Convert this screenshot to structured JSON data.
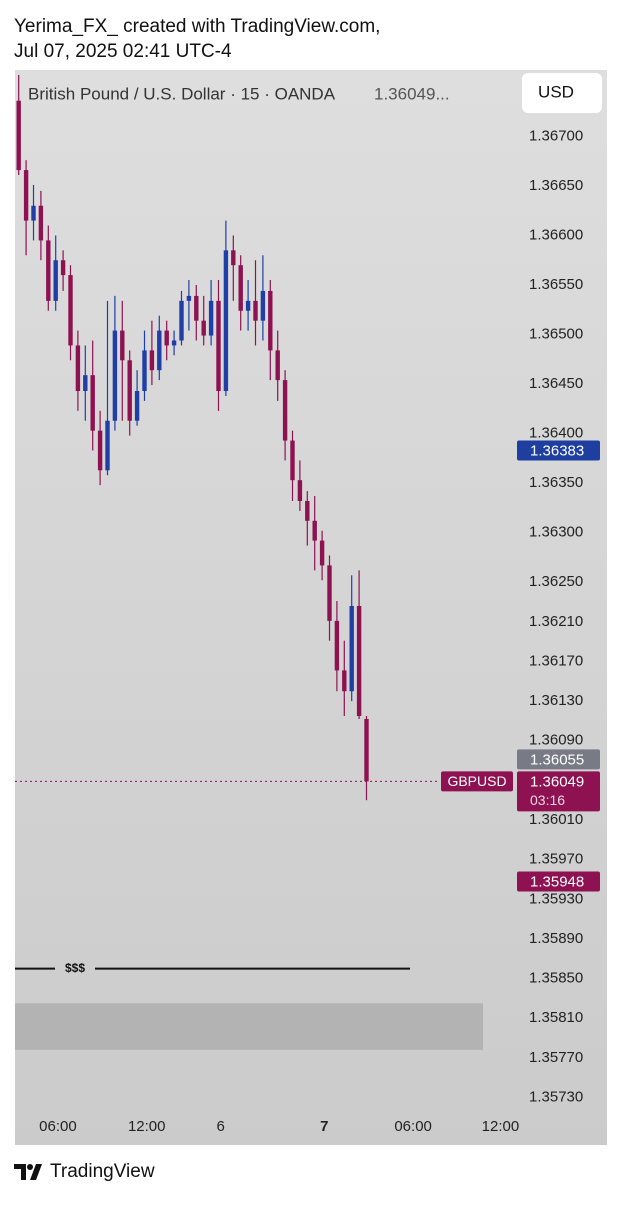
{
  "header": {
    "line1": "Yerima_FX_ created with TradingView.com,",
    "line2": "Jul 07, 2025 02:41 UTC-4"
  },
  "chart_data": {
    "type": "candlestick",
    "title": "British Pound / U.S. Dollar · 15 · OANDA",
    "last_price_text": "1.36049...",
    "currency": "USD",
    "up_color": "#1f3fa6",
    "down_color": "#8e1252",
    "open": [
      1.36736,
      1.36666,
      1.36615,
      1.3663,
      1.36595,
      1.36534,
      1.36575,
      1.3656,
      1.36489,
      1.36443,
      1.36459,
      1.36403,
      1.36363,
      1.36413,
      1.36504,
      1.36474,
      1.36413,
      1.36443,
      1.36484,
      1.36464,
      1.36504,
      1.36489,
      1.36494,
      1.36534,
      1.36539,
      1.36514,
      1.36499,
      1.36534,
      1.36443,
      1.36585,
      1.3657,
      1.36524,
      1.36534,
      1.36514,
      1.36544,
      1.36484,
      1.36454,
      1.36393,
      1.36353,
      1.36332,
      1.36312,
      1.36292,
      1.36267,
      1.36211,
      1.36161,
      1.3614,
      1.36226,
      1.36112
    ],
    "high": [
      1.36762,
      1.36676,
      1.36651,
      1.36645,
      1.3661,
      1.366,
      1.36585,
      1.3657,
      1.36504,
      1.36489,
      1.36494,
      1.36423,
      1.36534,
      1.36539,
      1.36534,
      1.36484,
      1.36464,
      1.36504,
      1.36514,
      1.36519,
      1.36514,
      1.36504,
      1.36544,
      1.36555,
      1.3655,
      1.36539,
      1.36555,
      1.36555,
      1.36615,
      1.366,
      1.3658,
      1.36555,
      1.36575,
      1.3658,
      1.36555,
      1.36504,
      1.36464,
      1.36403,
      1.36373,
      1.36342,
      1.36337,
      1.36302,
      1.36277,
      1.36231,
      1.36191,
      1.36257,
      1.36262,
      1.36115
    ],
    "low": [
      1.36661,
      1.3658,
      1.36595,
      1.36575,
      1.36524,
      1.36524,
      1.36544,
      1.36474,
      1.36423,
      1.36413,
      1.36383,
      1.36348,
      1.36358,
      1.36403,
      1.36413,
      1.36398,
      1.36408,
      1.36433,
      1.36449,
      1.36454,
      1.36474,
      1.36479,
      1.36489,
      1.36504,
      1.36494,
      1.36489,
      1.36489,
      1.36423,
      1.36438,
      1.36534,
      1.36504,
      1.36504,
      1.36489,
      1.36494,
      1.36454,
      1.36433,
      1.36373,
      1.36332,
      1.36322,
      1.36287,
      1.36262,
      1.36252,
      1.36191,
      1.3614,
      1.36115,
      1.3613,
      1.36112,
      1.3603
    ],
    "close": [
      1.36666,
      1.36615,
      1.3663,
      1.36595,
      1.36534,
      1.36575,
      1.3656,
      1.36489,
      1.36443,
      1.36459,
      1.36403,
      1.36363,
      1.36413,
      1.36504,
      1.36474,
      1.36413,
      1.36443,
      1.36484,
      1.36464,
      1.36504,
      1.36489,
      1.36494,
      1.36534,
      1.36539,
      1.36514,
      1.36499,
      1.36534,
      1.36443,
      1.36585,
      1.3657,
      1.36524,
      1.36534,
      1.36514,
      1.36544,
      1.36484,
      1.36454,
      1.36393,
      1.36353,
      1.36332,
      1.36312,
      1.36292,
      1.36267,
      1.36211,
      1.36161,
      1.3614,
      1.36226,
      1.36115,
      1.36049
    ],
    "xlim": [
      0,
      80
    ],
    "xticks": [
      {
        "value": 5.8,
        "label": "06:00"
      },
      {
        "value": 17.8,
        "label": "12:00"
      },
      {
        "value": 27.8,
        "label": "6"
      },
      {
        "value": 41.8,
        "label": "7"
      },
      {
        "value": 53.8,
        "label": "06:00"
      },
      {
        "value": 65.6,
        "label": "12:00"
      }
    ],
    "ylim": [
      1.35682,
      1.36767
    ],
    "yticks": [
      {
        "value": 1.367,
        "label": "1.36700"
      },
      {
        "value": 1.3665,
        "label": "1.36650"
      },
      {
        "value": 1.366,
        "label": "1.36600"
      },
      {
        "value": 1.3655,
        "label": "1.36550"
      },
      {
        "value": 1.365,
        "label": "1.36500"
      },
      {
        "value": 1.3645,
        "label": "1.36450"
      },
      {
        "value": 1.364,
        "label": "1.36400"
      },
      {
        "value": 1.3635,
        "label": "1.36350"
      },
      {
        "value": 1.363,
        "label": "1.36300"
      },
      {
        "value": 1.3625,
        "label": "1.36250"
      },
      {
        "value": 1.3621,
        "label": "1.36210"
      },
      {
        "value": 1.3617,
        "label": "1.36170"
      },
      {
        "value": 1.3613,
        "label": "1.36130"
      },
      {
        "value": 1.3609,
        "label": "1.36090"
      },
      {
        "value": 1.3601,
        "label": "1.36010"
      },
      {
        "value": 1.3597,
        "label": "1.35970"
      },
      {
        "value": 1.3593,
        "label": "1.35930"
      },
      {
        "value": 1.3589,
        "label": "1.35890"
      },
      {
        "value": 1.3585,
        "label": "1.35850"
      },
      {
        "value": 1.3581,
        "label": "1.35810"
      },
      {
        "value": 1.3577,
        "label": "1.35770"
      },
      {
        "value": 1.3573,
        "label": "1.35730"
      }
    ],
    "price_labels": [
      {
        "value": 1.36383,
        "color": "#1e3ea0"
      },
      {
        "value": 1.36055,
        "color": "#787b86"
      },
      {
        "value": 1.35948,
        "color": "#8e1252"
      }
    ],
    "last_price": {
      "value": 1.36049,
      "symbol": "GBPUSD",
      "countdown": "03:16",
      "color": "#8e1252"
    },
    "level_line": {
      "value": 1.3586,
      "label": "$$$"
    },
    "zone": [
      1.35778,
      1.35825
    ]
  },
  "footer": {
    "brand": "TradingView"
  }
}
